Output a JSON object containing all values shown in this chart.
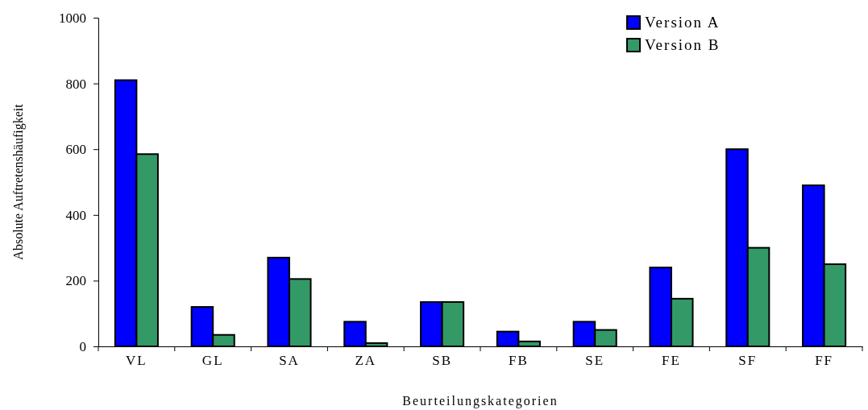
{
  "chart_data": {
    "type": "bar",
    "xlabel": "Beurteilungskategorien",
    "ylabel": "Absolute Auftretenshäufigkeit",
    "categories": [
      "VL",
      "GL",
      "SA",
      "ZA",
      "SB",
      "FB",
      "SE",
      "FE",
      "SF",
      "FF"
    ],
    "series": [
      {
        "name": "Version A",
        "color": "#0000ff",
        "values": [
          810,
          120,
          270,
          75,
          135,
          45,
          75,
          240,
          600,
          490
        ]
      },
      {
        "name": "Version B",
        "color": "#339966",
        "values": [
          585,
          35,
          205,
          10,
          135,
          15,
          50,
          145,
          300,
          250
        ]
      }
    ],
    "ylim": [
      0,
      1000
    ],
    "yticks": [
      0,
      200,
      400,
      600,
      800,
      1000
    ],
    "legend": "top right"
  }
}
